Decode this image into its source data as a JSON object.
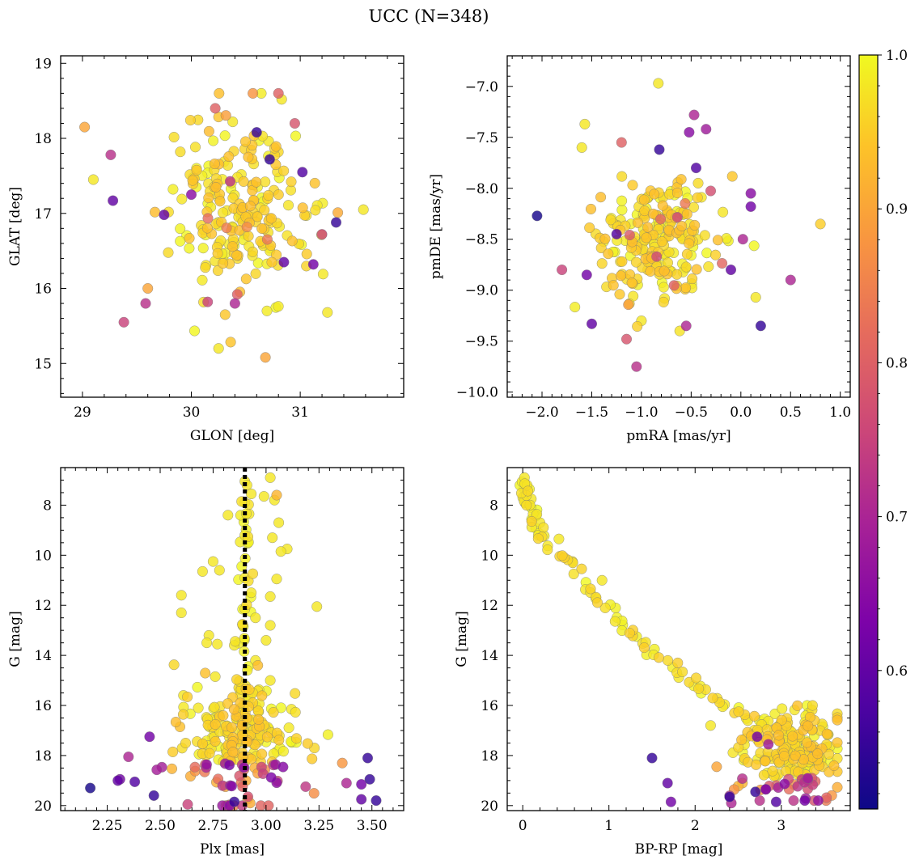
{
  "figure_title": "UCC (N=348)",
  "colorbar": {
    "ticks": [
      "0.6",
      "0.7",
      "0.8",
      "0.9",
      "1.0"
    ],
    "tick_values": [
      0.6,
      0.7,
      0.8,
      0.9,
      1.0
    ],
    "range": [
      0.51,
      1.0
    ]
  },
  "chart_data": [
    {
      "type": "scatter",
      "panel": "top-left",
      "xlabel": "GLON [deg]",
      "ylabel": "GLAT [deg]",
      "xlim": [
        28.8,
        31.95
      ],
      "ylim": [
        14.55,
        19.1
      ],
      "xticks": [
        29,
        30,
        31
      ],
      "xticklabels": [
        "29",
        "30",
        "31"
      ],
      "yticks": [
        15,
        16,
        17,
        18,
        19
      ],
      "yticklabels": [
        "15",
        "16",
        "17",
        "18",
        "19"
      ],
      "y_inverted": false,
      "vline": null,
      "n_points": 220,
      "seed": 11,
      "cloud": {
        "x_center": 30.45,
        "x_sd": 0.3,
        "y_center": 17.0,
        "y_sd": 0.55,
        "x_range": [
          29.1,
          31.6
        ],
        "y_range": [
          15.05,
          18.6
        ]
      },
      "highlight_points": [
        {
          "x": 30.8,
          "y": 18.6,
          "p": 0.8
        },
        {
          "x": 30.83,
          "y": 18.52,
          "p": 0.98
        },
        {
          "x": 29.02,
          "y": 18.15,
          "p": 0.9
        },
        {
          "x": 29.1,
          "y": 17.45,
          "p": 0.98
        },
        {
          "x": 29.26,
          "y": 17.78,
          "p": 0.72
        },
        {
          "x": 29.28,
          "y": 17.17,
          "p": 0.6
        },
        {
          "x": 29.38,
          "y": 15.55,
          "p": 0.75
        },
        {
          "x": 30.22,
          "y": 18.4,
          "p": 0.8
        },
        {
          "x": 30.25,
          "y": 15.2,
          "p": 0.98
        },
        {
          "x": 30.68,
          "y": 15.08,
          "p": 0.9
        },
        {
          "x": 30.6,
          "y": 18.08,
          "p": 0.55
        },
        {
          "x": 31.33,
          "y": 16.88,
          "p": 0.55
        },
        {
          "x": 31.12,
          "y": 16.32,
          "p": 0.62
        },
        {
          "x": 31.25,
          "y": 15.68,
          "p": 0.98
        },
        {
          "x": 31.58,
          "y": 17.05,
          "p": 0.98
        },
        {
          "x": 31.2,
          "y": 16.72,
          "p": 0.75
        },
        {
          "x": 29.58,
          "y": 15.8,
          "p": 0.72
        },
        {
          "x": 29.75,
          "y": 16.98,
          "p": 0.6
        },
        {
          "x": 30.0,
          "y": 17.25,
          "p": 0.65
        },
        {
          "x": 30.4,
          "y": 15.8,
          "p": 0.7
        },
        {
          "x": 30.15,
          "y": 15.82,
          "p": 0.75
        },
        {
          "x": 31.02,
          "y": 17.55,
          "p": 0.58
        },
        {
          "x": 30.72,
          "y": 17.72,
          "p": 0.55
        },
        {
          "x": 30.85,
          "y": 16.35,
          "p": 0.6
        },
        {
          "x": 29.6,
          "y": 16.0,
          "p": 0.9
        },
        {
          "x": 30.95,
          "y": 18.2,
          "p": 0.78
        },
        {
          "x": 30.38,
          "y": 18.22,
          "p": 0.98
        }
      ]
    },
    {
      "type": "scatter",
      "panel": "top-right",
      "xlabel": "pmRA [mas/yr]",
      "ylabel": "pmDE [mas/yr]",
      "xlim": [
        -2.35,
        1.1
      ],
      "ylim": [
        -10.05,
        -6.7
      ],
      "xticks": [
        -2.0,
        -1.5,
        -1.0,
        -0.5,
        0.0,
        0.5,
        1.0
      ],
      "xticklabels": [
        "−2.0",
        "−1.5",
        "−1.0",
        "−0.5",
        "0.0",
        "0.5",
        "1.0"
      ],
      "yticks": [
        -10.0,
        -9.5,
        -9.0,
        -8.5,
        -8.0,
        -7.5,
        -7.0
      ],
      "yticklabels": [
        "−10.0",
        "−9.5",
        "−9.0",
        "−8.5",
        "−8.0",
        "−7.5",
        "−7.0"
      ],
      "y_inverted": false,
      "vline": null,
      "n_points": 220,
      "seed": 23,
      "cloud": {
        "x_center": -0.85,
        "x_sd": 0.3,
        "y_center": -8.55,
        "y_sd": 0.32,
        "x_range": [
          -1.95,
          0.2
        ],
        "y_range": [
          -9.4,
          -7.7
        ]
      },
      "highlight_points": [
        {
          "x": -0.83,
          "y": -6.97,
          "p": 0.98
        },
        {
          "x": -1.57,
          "y": -7.37,
          "p": 0.98
        },
        {
          "x": -1.6,
          "y": -7.6,
          "p": 0.98
        },
        {
          "x": -2.05,
          "y": -8.27,
          "p": 0.52
        },
        {
          "x": 0.8,
          "y": -8.35,
          "p": 0.95
        },
        {
          "x": 0.5,
          "y": -8.9,
          "p": 0.7
        },
        {
          "x": -1.05,
          "y": -9.75,
          "p": 0.72
        },
        {
          "x": 0.2,
          "y": -9.35,
          "p": 0.55
        },
        {
          "x": -0.55,
          "y": -9.35,
          "p": 0.7
        },
        {
          "x": -0.47,
          "y": -7.28,
          "p": 0.7
        },
        {
          "x": -0.35,
          "y": -7.42,
          "p": 0.68
        },
        {
          "x": -0.52,
          "y": -7.45,
          "p": 0.65
        },
        {
          "x": -1.2,
          "y": -7.55,
          "p": 0.8
        },
        {
          "x": -0.82,
          "y": -7.62,
          "p": 0.55
        },
        {
          "x": -0.45,
          "y": -7.8,
          "p": 0.58
        },
        {
          "x": 0.1,
          "y": -8.05,
          "p": 0.65
        },
        {
          "x": 0.1,
          "y": -8.18,
          "p": 0.62
        },
        {
          "x": 0.02,
          "y": -8.5,
          "p": 0.7
        },
        {
          "x": -0.1,
          "y": -8.8,
          "p": 0.6
        },
        {
          "x": -1.5,
          "y": -9.33,
          "p": 0.6
        },
        {
          "x": -1.15,
          "y": -9.48,
          "p": 0.78
        },
        {
          "x": -1.8,
          "y": -8.8,
          "p": 0.75
        },
        {
          "x": -1.55,
          "y": -8.85,
          "p": 0.62
        },
        {
          "x": 0.15,
          "y": -9.07,
          "p": 0.98
        },
        {
          "x": -1.25,
          "y": -8.45,
          "p": 0.58
        },
        {
          "x": -1.0,
          "y": -9.3,
          "p": 0.98
        }
      ]
    },
    {
      "type": "scatter",
      "panel": "bottom-left",
      "xlabel": "Plx [mas]",
      "ylabel": "G [mag]",
      "xlim": [
        2.03,
        3.65
      ],
      "ylim": [
        20.2,
        6.5
      ],
      "xticks": [
        2.25,
        2.5,
        2.75,
        3.0,
        3.25,
        3.5
      ],
      "xticklabels": [
        "2.25",
        "2.50",
        "2.75",
        "3.00",
        "3.25",
        "3.50"
      ],
      "yticks": [
        8,
        10,
        12,
        14,
        16,
        18,
        20
      ],
      "yticklabels": [
        "8",
        "10",
        "12",
        "14",
        "16",
        "18",
        "20"
      ],
      "y_inverted": true,
      "vline": 2.9,
      "n_points": 230,
      "seed": 37,
      "cloud": {
        "x_center": 2.9,
        "x_sd": 0.14,
        "y_center": 17.6,
        "y_sd": 1.2,
        "x_range": [
          2.4,
          3.4
        ],
        "y_range": [
          13.0,
          20.0
        ]
      },
      "highlight_points": [
        {
          "x": 2.9,
          "y": 7.05,
          "p": 0.98
        },
        {
          "x": 2.91,
          "y": 7.2,
          "p": 0.98
        },
        {
          "x": 3.02,
          "y": 6.9,
          "p": 0.98
        },
        {
          "x": 2.93,
          "y": 7.55,
          "p": 0.98
        },
        {
          "x": 2.99,
          "y": 7.65,
          "p": 0.98
        },
        {
          "x": 3.05,
          "y": 7.6,
          "p": 0.92
        },
        {
          "x": 3.04,
          "y": 7.8,
          "p": 0.98
        },
        {
          "x": 2.9,
          "y": 7.9,
          "p": 0.98
        },
        {
          "x": 2.82,
          "y": 8.4,
          "p": 0.98
        },
        {
          "x": 2.92,
          "y": 8.35,
          "p": 0.98
        },
        {
          "x": 3.06,
          "y": 8.7,
          "p": 0.98
        },
        {
          "x": 2.9,
          "y": 9.2,
          "p": 0.98
        },
        {
          "x": 3.03,
          "y": 9.3,
          "p": 0.98
        },
        {
          "x": 3.1,
          "y": 9.75,
          "p": 0.98
        },
        {
          "x": 3.07,
          "y": 9.85,
          "p": 0.98
        },
        {
          "x": 2.75,
          "y": 10.25,
          "p": 0.98
        },
        {
          "x": 2.7,
          "y": 10.65,
          "p": 0.98
        },
        {
          "x": 2.78,
          "y": 10.6,
          "p": 0.98
        },
        {
          "x": 2.9,
          "y": 10.9,
          "p": 0.98
        },
        {
          "x": 3.05,
          "y": 10.95,
          "p": 0.98
        },
        {
          "x": 2.93,
          "y": 11.5,
          "p": 0.98
        },
        {
          "x": 2.6,
          "y": 11.6,
          "p": 0.98
        },
        {
          "x": 3.02,
          "y": 11.65,
          "p": 0.98
        },
        {
          "x": 2.6,
          "y": 12.3,
          "p": 0.98
        },
        {
          "x": 3.24,
          "y": 12.05,
          "p": 0.98
        },
        {
          "x": 2.9,
          "y": 12.15,
          "p": 0.98
        },
        {
          "x": 2.95,
          "y": 12.5,
          "p": 0.98
        },
        {
          "x": 3.02,
          "y": 12.8,
          "p": 0.98
        },
        {
          "x": 2.73,
          "y": 13.2,
          "p": 0.98
        },
        {
          "x": 2.72,
          "y": 13.5,
          "p": 0.98
        },
        {
          "x": 2.77,
          "y": 13.55,
          "p": 0.98
        },
        {
          "x": 2.85,
          "y": 13.6,
          "p": 0.98
        },
        {
          "x": 3.0,
          "y": 13.4,
          "p": 0.98
        },
        {
          "x": 2.95,
          "y": 14.2,
          "p": 0.98
        },
        {
          "x": 2.76,
          "y": 14.85,
          "p": 0.98
        },
        {
          "x": 3.02,
          "y": 15.0,
          "p": 0.98
        },
        {
          "x": 2.61,
          "y": 15.6,
          "p": 0.98
        },
        {
          "x": 2.68,
          "y": 16.1,
          "p": 0.98
        },
        {
          "x": 3.12,
          "y": 16.15,
          "p": 0.98
        },
        {
          "x": 2.17,
          "y": 19.3,
          "p": 0.52
        },
        {
          "x": 2.3,
          "y": 19.0,
          "p": 0.6
        },
        {
          "x": 2.31,
          "y": 18.95,
          "p": 0.62
        },
        {
          "x": 2.38,
          "y": 19.05,
          "p": 0.58
        },
        {
          "x": 2.35,
          "y": 18.05,
          "p": 0.7
        },
        {
          "x": 2.45,
          "y": 17.25,
          "p": 0.62
        },
        {
          "x": 2.47,
          "y": 19.6,
          "p": 0.55
        },
        {
          "x": 3.45,
          "y": 19.15,
          "p": 0.62
        },
        {
          "x": 3.49,
          "y": 18.95,
          "p": 0.55
        },
        {
          "x": 3.48,
          "y": 18.1,
          "p": 0.55
        },
        {
          "x": 3.52,
          "y": 19.8,
          "p": 0.55
        },
        {
          "x": 3.45,
          "y": 19.75,
          "p": 0.6
        },
        {
          "x": 3.36,
          "y": 18.3,
          "p": 0.88
        },
        {
          "x": 3.38,
          "y": 19.1,
          "p": 0.7
        },
        {
          "x": 2.63,
          "y": 19.95,
          "p": 0.75
        },
        {
          "x": 2.85,
          "y": 19.85,
          "p": 0.55
        }
      ]
    },
    {
      "type": "scatter",
      "panel": "bottom-right",
      "xlabel": "BP-RP [mag]",
      "ylabel": "G [mag]",
      "xlim": [
        -0.18,
        3.8
      ],
      "ylim": [
        20.2,
        6.5
      ],
      "xticks": [
        0,
        1,
        2,
        3
      ],
      "xticklabels": [
        "0",
        "1",
        "2",
        "3"
      ],
      "yticks": [
        8,
        10,
        12,
        14,
        16,
        18,
        20
      ],
      "yticklabels": [
        "8",
        "10",
        "12",
        "14",
        "16",
        "18",
        "20"
      ],
      "y_inverted": true,
      "vline": null,
      "n_points": 200,
      "seed": 53,
      "cloud": {
        "x_center": 3.1,
        "x_sd": 0.28,
        "y_center": 17.8,
        "y_sd": 0.9,
        "x_range": [
          2.4,
          3.65
        ],
        "y_range": [
          16.0,
          19.8
        ]
      },
      "sequence": [
        [
          0.0,
          7.0
        ],
        [
          0.02,
          7.3
        ],
        [
          0.03,
          7.6
        ],
        [
          0.06,
          7.9
        ],
        [
          0.1,
          8.3
        ],
        [
          0.15,
          8.7
        ],
        [
          0.2,
          9.1
        ],
        [
          0.35,
          9.6
        ],
        [
          0.5,
          10.2
        ],
        [
          0.65,
          10.7
        ],
        [
          0.8,
          11.3
        ],
        [
          0.95,
          11.9
        ],
        [
          1.1,
          12.5
        ],
        [
          1.2,
          13.0
        ],
        [
          1.35,
          13.5
        ],
        [
          1.5,
          13.8
        ],
        [
          1.7,
          14.3
        ],
        [
          1.85,
          14.8
        ],
        [
          2.0,
          15.2
        ],
        [
          2.2,
          15.6
        ],
        [
          2.4,
          16.1
        ],
        [
          2.6,
          16.4
        ],
        [
          2.8,
          16.7
        ],
        [
          3.0,
          17.0
        ],
        [
          3.2,
          17.4
        ],
        [
          3.4,
          17.9
        ],
        [
          3.55,
          18.5
        ]
      ],
      "highlight_points": [
        {
          "x": 0.02,
          "y": 6.9,
          "p": 0.98
        },
        {
          "x": 0.05,
          "y": 7.2,
          "p": 0.98
        },
        {
          "x": 0.1,
          "y": 7.75,
          "p": 0.98
        },
        {
          "x": 0.0,
          "y": 7.7,
          "p": 0.98
        },
        {
          "x": 0.12,
          "y": 8.35,
          "p": 0.98
        },
        {
          "x": 0.2,
          "y": 8.7,
          "p": 0.98
        },
        {
          "x": 0.18,
          "y": 9.2,
          "p": 0.98
        },
        {
          "x": 0.42,
          "y": 9.35,
          "p": 0.98
        },
        {
          "x": 0.92,
          "y": 11.0,
          "p": 0.98
        },
        {
          "x": 1.5,
          "y": 18.1,
          "p": 0.55
        },
        {
          "x": 1.68,
          "y": 19.1,
          "p": 0.6
        },
        {
          "x": 1.72,
          "y": 19.85,
          "p": 0.62
        },
        {
          "x": 2.25,
          "y": 18.45,
          "p": 0.9
        },
        {
          "x": 2.55,
          "y": 19.1,
          "p": 0.92
        },
        {
          "x": 2.4,
          "y": 19.65,
          "p": 0.55
        },
        {
          "x": 2.42,
          "y": 19.9,
          "p": 0.7
        },
        {
          "x": 2.7,
          "y": 19.45,
          "p": 0.55
        },
        {
          "x": 2.75,
          "y": 19.8,
          "p": 0.72
        },
        {
          "x": 2.72,
          "y": 17.25,
          "p": 0.62
        },
        {
          "x": 2.85,
          "y": 17.55,
          "p": 0.68
        },
        {
          "x": 2.82,
          "y": 19.35,
          "p": 0.75
        },
        {
          "x": 2.94,
          "y": 19.85,
          "p": 0.58
        },
        {
          "x": 2.32,
          "y": 16.05,
          "p": 0.98
        },
        {
          "x": 2.18,
          "y": 16.8,
          "p": 0.98
        }
      ]
    }
  ]
}
